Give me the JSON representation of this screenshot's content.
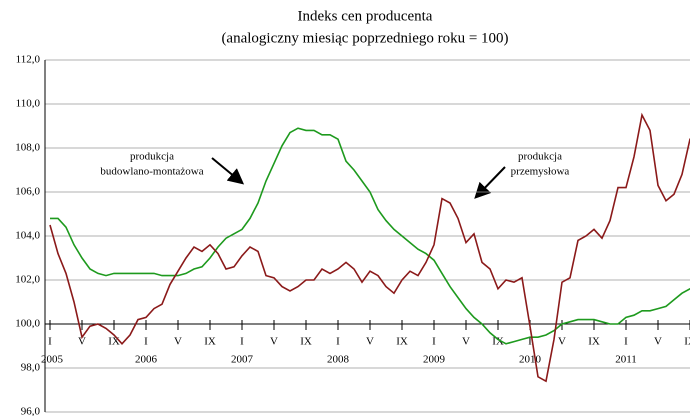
{
  "chart_data": {
    "type": "line",
    "title": "Indeks cen producenta",
    "subtitle": "(analogiczny miesiąc poprzedniego roku = 100)",
    "categories": [
      "I",
      null,
      null,
      null,
      "V",
      null,
      null,
      null,
      "IX",
      null,
      null,
      null,
      "I",
      null,
      null,
      null,
      "V",
      null,
      null,
      null,
      "IX",
      null,
      null,
      null,
      "I",
      null,
      null,
      null,
      "V",
      null,
      null,
      null,
      "IX",
      null,
      null,
      null,
      "I",
      null,
      null,
      null,
      "V",
      null,
      null,
      null,
      "IX",
      null,
      null,
      null,
      "I",
      null,
      null,
      null,
      "V",
      null,
      null,
      null,
      "IX",
      null,
      null,
      null,
      "I",
      null,
      null,
      null,
      "V",
      null,
      null,
      null,
      "IX",
      null,
      null,
      null,
      "I",
      null,
      null,
      null,
      "V",
      null,
      null,
      null,
      "IX",
      null
    ],
    "years": [
      "2005",
      "2006",
      "2007",
      "2008",
      "2009",
      "2010",
      "2011"
    ],
    "series": [
      {
        "color": "#1e9a1e",
        "values": [
          104.8,
          104.8,
          104.4,
          103.6,
          103.0,
          102.5,
          102.3,
          102.2,
          102.3,
          102.3,
          102.3,
          102.3,
          102.3,
          102.3,
          102.2,
          102.2,
          102.2,
          102.3,
          102.5,
          102.6,
          103.0,
          103.5,
          103.9,
          104.1,
          104.3,
          104.8,
          105.5,
          106.5,
          107.3,
          108.1,
          108.7,
          108.9,
          108.8,
          108.8,
          108.6,
          108.6,
          108.4,
          107.4,
          107.0,
          106.5,
          106.0,
          105.2,
          104.7,
          104.3,
          104.0,
          103.7,
          103.4,
          103.2,
          102.9,
          102.3,
          101.7,
          101.2,
          100.7,
          100.3,
          100.0,
          99.6,
          99.3,
          99.1,
          99.2,
          99.3,
          99.4,
          99.4,
          99.5,
          99.7,
          100.0,
          100.1,
          100.2,
          100.2,
          100.2,
          100.1,
          100.0,
          100.0,
          100.3,
          100.4,
          100.6,
          100.6,
          100.7,
          100.8,
          101.1,
          101.4,
          101.6,
          101.6
        ]
      },
      {
        "color": "#8b1a1a",
        "values": [
          104.5,
          103.2,
          102.3,
          101.0,
          99.4,
          99.9,
          100.0,
          99.8,
          99.5,
          99.1,
          99.5,
          100.2,
          100.3,
          100.7,
          100.9,
          101.8,
          102.4,
          103.0,
          103.5,
          103.3,
          103.6,
          103.2,
          102.5,
          102.6,
          103.1,
          103.5,
          103.3,
          102.2,
          102.1,
          101.7,
          101.5,
          101.7,
          102.0,
          102.0,
          102.5,
          102.3,
          102.5,
          102.8,
          102.5,
          101.9,
          102.4,
          102.2,
          101.7,
          101.4,
          102.0,
          102.4,
          102.2,
          102.8,
          103.6,
          105.7,
          105.5,
          104.8,
          103.7,
          104.1,
          102.8,
          102.5,
          101.6,
          102.0,
          101.9,
          102.1,
          99.9,
          97.6,
          97.4,
          99.3,
          101.9,
          102.1,
          103.8,
          104.0,
          104.3,
          103.9,
          104.7,
          106.2,
          106.2,
          107.6,
          109.5,
          108.8,
          106.3,
          105.6,
          105.9,
          106.8,
          108.4,
          108.5
        ]
      }
    ],
    "annotations": [
      {
        "lines": [
          "produkcja",
          "budowlano-montażowa"
        ]
      },
      {
        "lines": [
          "produkcja",
          "przemysłowa"
        ]
      }
    ],
    "ylim": [
      96,
      112
    ],
    "yticks": [
      {
        "value": 96,
        "label": "96,0"
      },
      {
        "value": 98,
        "label": "98,0"
      },
      {
        "value": 100,
        "label": "100,0"
      },
      {
        "value": 102,
        "label": "102,0"
      },
      {
        "value": 104,
        "label": "104,0"
      },
      {
        "value": 106,
        "label": "106,0"
      },
      {
        "value": 108,
        "label": "108,0"
      },
      {
        "value": 110,
        "label": "110,0"
      },
      {
        "value": 112,
        "label": "112,0"
      }
    ],
    "xaxis_at": 100,
    "grid": true
  }
}
